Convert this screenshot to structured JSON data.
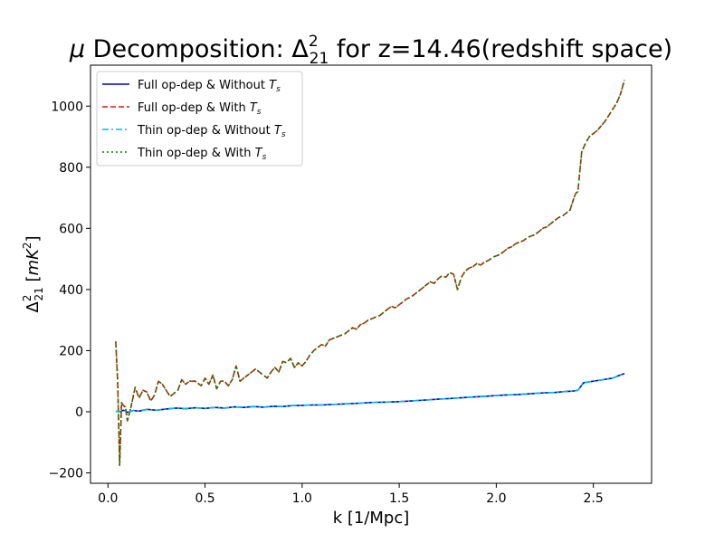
{
  "chart_data": {
    "type": "line",
    "title": "μ Decomposition: Δ²₂₁ for z=14.46(redshift space)",
    "title_parts": {
      "mu": "μ",
      "text1": " Decomposition: Δ",
      "sup": "2",
      "sub": "21",
      "text2": " for z=14.46(redshift space)"
    },
    "xlabel": "k [1/Mpc]",
    "ylabel": "Δ²₂₁ [mK²]",
    "ylabel_parts": {
      "delta": "Δ",
      "sup": "2",
      "sub": "21",
      "open": " [",
      "m": "m",
      "K": "K",
      "sup2": "2",
      "close": "]"
    },
    "xlim": [
      -0.09,
      2.8
    ],
    "ylim": [
      -234,
      1134
    ],
    "xticks": [
      0.0,
      0.5,
      1.0,
      1.5,
      2.0,
      2.5
    ],
    "xtick_labels": [
      "0.0",
      "0.5",
      "1.0",
      "1.5",
      "2.0",
      "2.5"
    ],
    "yticks": [
      -200,
      0,
      200,
      400,
      600,
      800,
      1000
    ],
    "ytick_labels": [
      "−200",
      "0",
      "200",
      "400",
      "600",
      "800",
      "1000"
    ],
    "grid": false,
    "legend_position": "top-left",
    "series": [
      {
        "name": "Full op-dep & Without T_s",
        "legend_parts": {
          "text": "Full op-dep & Without ",
          "T": "T",
          "sub": "s"
        },
        "color": "#0000cc",
        "style": "solid",
        "x": [
          0.04,
          0.06,
          0.08,
          0.1,
          0.13,
          0.16,
          0.2,
          0.25,
          0.3,
          0.35,
          0.4,
          0.45,
          0.5,
          0.55,
          0.6,
          0.65,
          0.7,
          0.75,
          0.8,
          0.85,
          0.9,
          0.95,
          1.0,
          1.05,
          1.1,
          1.15,
          1.2,
          1.25,
          1.3,
          1.35,
          1.4,
          1.45,
          1.5,
          1.55,
          1.6,
          1.65,
          1.7,
          1.75,
          1.8,
          1.85,
          1.9,
          1.95,
          2.0,
          2.05,
          2.1,
          2.15,
          2.2,
          2.25,
          2.3,
          2.35,
          2.38,
          2.4,
          2.42,
          2.45,
          2.5,
          2.55,
          2.6,
          2.63,
          2.66
        ],
        "y": [
          1,
          0,
          5,
          -2,
          4,
          2,
          8,
          5,
          9,
          12,
          10,
          13,
          11,
          14,
          12,
          16,
          14,
          17,
          15,
          18,
          17,
          20,
          21,
          22,
          22,
          24,
          25,
          27,
          28,
          30,
          31,
          32,
          33,
          35,
          37,
          39,
          41,
          43,
          45,
          47,
          49,
          51,
          53,
          55,
          56,
          58,
          60,
          62,
          63,
          66,
          67,
          68,
          70,
          95,
          100,
          105,
          110,
          118,
          125
        ]
      },
      {
        "name": "Full op-dep & With T_s",
        "legend_parts": {
          "text": "Full op-dep & With ",
          "T": "T",
          "sub": "s"
        },
        "color": "#dd1a00",
        "style": "dashed",
        "x": [
          0.04,
          0.05,
          0.06,
          0.07,
          0.08,
          0.09,
          0.1,
          0.12,
          0.14,
          0.16,
          0.18,
          0.2,
          0.22,
          0.24,
          0.26,
          0.28,
          0.3,
          0.32,
          0.34,
          0.36,
          0.38,
          0.4,
          0.42,
          0.45,
          0.48,
          0.5,
          0.52,
          0.54,
          0.56,
          0.58,
          0.6,
          0.62,
          0.64,
          0.66,
          0.68,
          0.7,
          0.72,
          0.74,
          0.76,
          0.78,
          0.8,
          0.82,
          0.84,
          0.86,
          0.88,
          0.9,
          0.92,
          0.94,
          0.96,
          0.98,
          1.0,
          1.02,
          1.04,
          1.06,
          1.08,
          1.1,
          1.12,
          1.14,
          1.16,
          1.18,
          1.2,
          1.22,
          1.24,
          1.26,
          1.28,
          1.3,
          1.32,
          1.34,
          1.36,
          1.38,
          1.4,
          1.42,
          1.44,
          1.46,
          1.48,
          1.5,
          1.52,
          1.54,
          1.56,
          1.58,
          1.6,
          1.62,
          1.64,
          1.66,
          1.68,
          1.7,
          1.72,
          1.74,
          1.76,
          1.78,
          1.8,
          1.82,
          1.84,
          1.86,
          1.88,
          1.9,
          1.92,
          1.94,
          1.96,
          1.98,
          2.0,
          2.02,
          2.04,
          2.06,
          2.08,
          2.1,
          2.12,
          2.14,
          2.16,
          2.18,
          2.2,
          2.22,
          2.24,
          2.26,
          2.28,
          2.3,
          2.32,
          2.34,
          2.36,
          2.38,
          2.4,
          2.41,
          2.42,
          2.44,
          2.46,
          2.48,
          2.5,
          2.52,
          2.54,
          2.56,
          2.58,
          2.6,
          2.62,
          2.64,
          2.66
        ],
        "y": [
          230,
          100,
          -175,
          30,
          20,
          15,
          -30,
          20,
          80,
          45,
          70,
          65,
          35,
          55,
          100,
          90,
          70,
          50,
          60,
          70,
          105,
          90,
          100,
          100,
          85,
          110,
          90,
          120,
          75,
          100,
          100,
          85,
          105,
          150,
          100,
          110,
          120,
          130,
          140,
          130,
          120,
          110,
          130,
          145,
          130,
          165,
          160,
          175,
          145,
          160,
          150,
          165,
          185,
          200,
          210,
          220,
          215,
          235,
          240,
          245,
          250,
          255,
          265,
          275,
          270,
          285,
          290,
          300,
          305,
          310,
          315,
          325,
          335,
          345,
          340,
          350,
          360,
          370,
          375,
          385,
          395,
          405,
          415,
          425,
          420,
          435,
          445,
          440,
          455,
          450,
          400,
          440,
          460,
          470,
          475,
          485,
          480,
          490,
          495,
          505,
          510,
          515,
          525,
          535,
          540,
          550,
          555,
          560,
          570,
          575,
          580,
          590,
          600,
          605,
          615,
          625,
          635,
          640,
          650,
          660,
          700,
          715,
          720,
          850,
          880,
          900,
          910,
          920,
          935,
          950,
          970,
          990,
          1010,
          1040,
          1085
        ]
      },
      {
        "name": "Thin op-dep & Without T_s",
        "legend_parts": {
          "text": "Thin op-dep & Without ",
          "T": "T",
          "sub": "s"
        },
        "color": "#00bfd8",
        "style": "dashdot",
        "x": [
          0.04,
          0.06,
          0.08,
          0.1,
          0.13,
          0.16,
          0.2,
          0.25,
          0.3,
          0.35,
          0.4,
          0.45,
          0.5,
          0.55,
          0.6,
          0.65,
          0.7,
          0.75,
          0.8,
          0.85,
          0.9,
          0.95,
          1.0,
          1.05,
          1.1,
          1.15,
          1.2,
          1.25,
          1.3,
          1.35,
          1.4,
          1.45,
          1.5,
          1.55,
          1.6,
          1.65,
          1.7,
          1.75,
          1.8,
          1.85,
          1.9,
          1.95,
          2.0,
          2.05,
          2.1,
          2.15,
          2.2,
          2.25,
          2.3,
          2.35,
          2.38,
          2.4,
          2.42,
          2.45,
          2.5,
          2.55,
          2.6,
          2.63,
          2.66
        ],
        "y": [
          1,
          0,
          5,
          -2,
          4,
          2,
          8,
          5,
          9,
          12,
          10,
          13,
          11,
          14,
          12,
          16,
          14,
          17,
          15,
          18,
          17,
          20,
          21,
          22,
          22,
          24,
          25,
          27,
          28,
          30,
          31,
          32,
          33,
          35,
          37,
          39,
          41,
          43,
          45,
          47,
          49,
          51,
          53,
          55,
          56,
          58,
          60,
          62,
          63,
          66,
          67,
          68,
          70,
          95,
          100,
          105,
          110,
          118,
          125
        ]
      },
      {
        "name": "Thin op-dep & With T_s",
        "legend_parts": {
          "text": "Thin op-dep & With ",
          "T": "T",
          "sub": "s"
        },
        "color": "#008000",
        "style": "dotted",
        "x": [
          0.04,
          0.05,
          0.06,
          0.07,
          0.08,
          0.09,
          0.1,
          0.12,
          0.14,
          0.16,
          0.18,
          0.2,
          0.22,
          0.24,
          0.26,
          0.28,
          0.3,
          0.32,
          0.34,
          0.36,
          0.38,
          0.4,
          0.42,
          0.45,
          0.48,
          0.5,
          0.52,
          0.54,
          0.56,
          0.58,
          0.6,
          0.62,
          0.64,
          0.66,
          0.68,
          0.7,
          0.72,
          0.74,
          0.76,
          0.78,
          0.8,
          0.82,
          0.84,
          0.86,
          0.88,
          0.9,
          0.92,
          0.94,
          0.96,
          0.98,
          1.0,
          1.02,
          1.04,
          1.06,
          1.08,
          1.1,
          1.12,
          1.14,
          1.16,
          1.18,
          1.2,
          1.22,
          1.24,
          1.26,
          1.28,
          1.3,
          1.32,
          1.34,
          1.36,
          1.38,
          1.4,
          1.42,
          1.44,
          1.46,
          1.48,
          1.5,
          1.52,
          1.54,
          1.56,
          1.58,
          1.6,
          1.62,
          1.64,
          1.66,
          1.68,
          1.7,
          1.72,
          1.74,
          1.76,
          1.78,
          1.8,
          1.82,
          1.84,
          1.86,
          1.88,
          1.9,
          1.92,
          1.94,
          1.96,
          1.98,
          2.0,
          2.02,
          2.04,
          2.06,
          2.08,
          2.1,
          2.12,
          2.14,
          2.16,
          2.18,
          2.2,
          2.22,
          2.24,
          2.26,
          2.28,
          2.3,
          2.32,
          2.34,
          2.36,
          2.38,
          2.4,
          2.41,
          2.42,
          2.44,
          2.46,
          2.48,
          2.5,
          2.52,
          2.54,
          2.56,
          2.58,
          2.6,
          2.62,
          2.64,
          2.66
        ],
        "y": [
          230,
          100,
          -175,
          30,
          20,
          15,
          -30,
          20,
          80,
          45,
          70,
          65,
          35,
          55,
          100,
          90,
          70,
          50,
          60,
          70,
          105,
          90,
          100,
          100,
          85,
          110,
          90,
          120,
          75,
          100,
          100,
          85,
          105,
          150,
          100,
          110,
          120,
          130,
          140,
          130,
          120,
          110,
          130,
          145,
          130,
          165,
          160,
          175,
          145,
          160,
          150,
          165,
          185,
          200,
          210,
          220,
          215,
          235,
          240,
          245,
          250,
          255,
          265,
          275,
          270,
          285,
          290,
          300,
          305,
          310,
          315,
          325,
          335,
          345,
          340,
          350,
          360,
          370,
          375,
          385,
          395,
          405,
          415,
          425,
          420,
          435,
          445,
          440,
          455,
          450,
          400,
          440,
          460,
          470,
          475,
          485,
          480,
          490,
          495,
          505,
          510,
          515,
          525,
          535,
          540,
          550,
          555,
          560,
          570,
          575,
          580,
          590,
          600,
          605,
          615,
          625,
          635,
          640,
          650,
          660,
          700,
          715,
          720,
          850,
          880,
          900,
          910,
          920,
          935,
          950,
          970,
          990,
          1010,
          1040,
          1085
        ]
      }
    ]
  }
}
